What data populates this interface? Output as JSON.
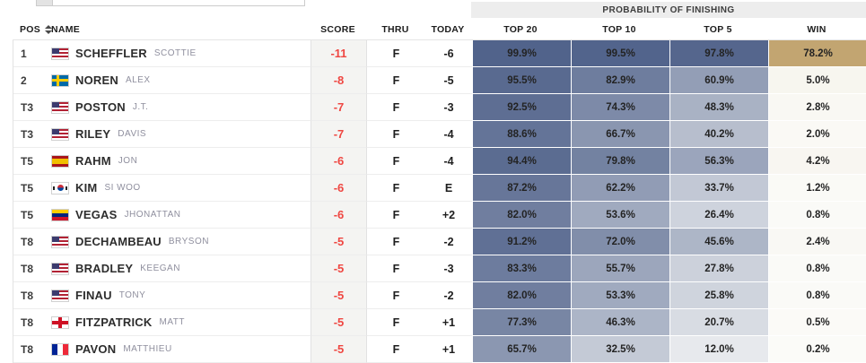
{
  "top_widget": {
    "value": ""
  },
  "banner": {
    "title": "PROBABILITY OF FINISHING"
  },
  "columns": {
    "pos": "POS",
    "name": "NAME",
    "score": "SCORE",
    "thru": "THRU",
    "today": "TODAY",
    "top20": "TOP 20",
    "top10": "TOP 10",
    "top5": "TOP 5",
    "win": "WIN"
  },
  "colors": {
    "score_red": "#ef4742",
    "prob_low": "#fbfbfa",
    "prob_high": "#51638b",
    "win_low": "#fbfbf8",
    "win_high": "#b28d4b"
  },
  "rows": [
    {
      "pos": "1",
      "country": "us",
      "last": "SCHEFFLER",
      "first": "SCOTTIE",
      "score": "-11",
      "thru": "F",
      "today": "-6",
      "top20": "99.9%",
      "top10": "99.5%",
      "top5": "97.8%",
      "win": "78.2%"
    },
    {
      "pos": "2",
      "country": "se",
      "last": "NOREN",
      "first": "ALEX",
      "score": "-8",
      "thru": "F",
      "today": "-5",
      "top20": "95.5%",
      "top10": "82.9%",
      "top5": "60.9%",
      "win": "5.0%"
    },
    {
      "pos": "T3",
      "country": "us",
      "last": "POSTON",
      "first": "J.T.",
      "score": "-7",
      "thru": "F",
      "today": "-3",
      "top20": "92.5%",
      "top10": "74.3%",
      "top5": "48.3%",
      "win": "2.8%"
    },
    {
      "pos": "T3",
      "country": "us",
      "last": "RILEY",
      "first": "DAVIS",
      "score": "-7",
      "thru": "F",
      "today": "-4",
      "top20": "88.6%",
      "top10": "66.7%",
      "top5": "40.2%",
      "win": "2.0%"
    },
    {
      "pos": "T5",
      "country": "es",
      "last": "RAHM",
      "first": "JON",
      "score": "-6",
      "thru": "F",
      "today": "-4",
      "top20": "94.4%",
      "top10": "79.8%",
      "top5": "56.3%",
      "win": "4.2%"
    },
    {
      "pos": "T5",
      "country": "kr",
      "last": "KIM",
      "first": "SI WOO",
      "score": "-6",
      "thru": "F",
      "today": "E",
      "top20": "87.2%",
      "top10": "62.2%",
      "top5": "33.7%",
      "win": "1.2%"
    },
    {
      "pos": "T5",
      "country": "ve",
      "last": "VEGAS",
      "first": "JHONATTAN",
      "score": "-6",
      "thru": "F",
      "today": "+2",
      "top20": "82.0%",
      "top10": "53.6%",
      "top5": "26.4%",
      "win": "0.8%"
    },
    {
      "pos": "T8",
      "country": "us",
      "last": "DECHAMBEAU",
      "first": "BRYSON",
      "score": "-5",
      "thru": "F",
      "today": "-2",
      "top20": "91.2%",
      "top10": "72.0%",
      "top5": "45.6%",
      "win": "2.4%"
    },
    {
      "pos": "T8",
      "country": "us",
      "last": "BRADLEY",
      "first": "KEEGAN",
      "score": "-5",
      "thru": "F",
      "today": "-3",
      "top20": "83.3%",
      "top10": "55.7%",
      "top5": "27.8%",
      "win": "0.8%"
    },
    {
      "pos": "T8",
      "country": "us",
      "last": "FINAU",
      "first": "TONY",
      "score": "-5",
      "thru": "F",
      "today": "-2",
      "top20": "82.0%",
      "top10": "53.3%",
      "top5": "25.8%",
      "win": "0.8%"
    },
    {
      "pos": "T8",
      "country": "eng",
      "last": "FITZPATRICK",
      "first": "MATT",
      "score": "-5",
      "thru": "F",
      "today": "+1",
      "top20": "77.3%",
      "top10": "46.3%",
      "top5": "20.7%",
      "win": "0.5%"
    },
    {
      "pos": "T8",
      "country": "fr",
      "last": "PAVON",
      "first": "MATTHIEU",
      "score": "-5",
      "thru": "F",
      "today": "+1",
      "top20": "65.7%",
      "top10": "32.5%",
      "top5": "12.0%",
      "win": "0.2%"
    }
  ]
}
